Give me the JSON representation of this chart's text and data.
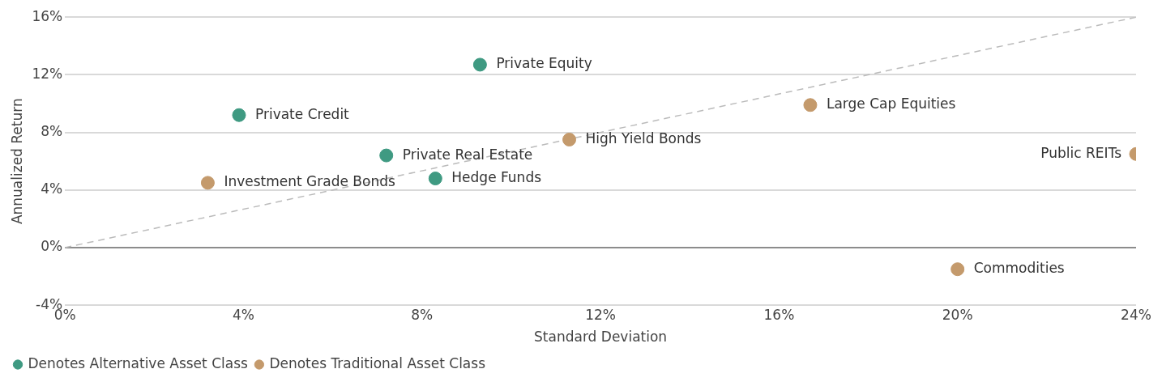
{
  "chart_data": {
    "type": "scatter",
    "xlabel": "Standard Deviation",
    "ylabel": "Annualized Return",
    "xlim": [
      0,
      24
    ],
    "ylim": [
      -4,
      16
    ],
    "xticks": [
      {
        "value": 0,
        "label": "0%"
      },
      {
        "value": 4,
        "label": "4%"
      },
      {
        "value": 8,
        "label": "8%"
      },
      {
        "value": 12,
        "label": "12%"
      },
      {
        "value": 16,
        "label": "16%"
      },
      {
        "value": 20,
        "label": "20%"
      },
      {
        "value": 24,
        "label": "24%"
      }
    ],
    "yticks": [
      {
        "value": -4,
        "label": "-4%"
      },
      {
        "value": 0,
        "label": "0%"
      },
      {
        "value": 4,
        "label": "4%"
      },
      {
        "value": 8,
        "label": "8%"
      },
      {
        "value": 12,
        "label": "12%"
      },
      {
        "value": 16,
        "label": "16%"
      }
    ],
    "grid": "y",
    "legend": "bottom left",
    "marker": "circle",
    "ref_lines": [
      {
        "axis": "y",
        "value": 0,
        "color": "#8c8c8c"
      }
    ],
    "series": [
      {
        "name": "Denotes Alternative Asset Class",
        "color": "#3f9a82",
        "x": [
          9.3,
          3.9,
          7.2,
          8.3
        ],
        "values": [
          12.7,
          9.2,
          6.4,
          4.8
        ]
      },
      {
        "name": "Denotes Traditional Asset Class",
        "color": "#c49a6c",
        "x": [
          3.2,
          11.3,
          16.7,
          24,
          20
        ],
        "values": [
          4.5,
          7.5,
          9.9,
          6.5,
          -1.5
        ]
      },
      {
        "type": "line",
        "color": "#bbbbbb",
        "line_style": "dashed",
        "marker": "none",
        "x": [
          0,
          24
        ],
        "values": [
          0,
          16
        ]
      }
    ],
    "annotations": [
      {
        "text": "Private Equity",
        "x": 9.3,
        "y": 12.7
      },
      {
        "text": "Private Credit",
        "x": 3.9,
        "y": 9.2
      },
      {
        "text": "Private Real Estate",
        "x": 7.2,
        "y": 6.4
      },
      {
        "text": "Hedge Funds",
        "x": 8.3,
        "y": 4.8
      },
      {
        "text": "Investment Grade Bonds",
        "x": 3.2,
        "y": 4.5
      },
      {
        "text": "High Yield Bonds",
        "x": 11.3,
        "y": 7.5
      },
      {
        "text": "Large Cap Equities",
        "x": 16.7,
        "y": 9.9
      },
      {
        "text": "Public REITs",
        "x": 24,
        "y": 6.5
      },
      {
        "text": "Commodities",
        "x": 20,
        "y": -1.5
      }
    ]
  }
}
